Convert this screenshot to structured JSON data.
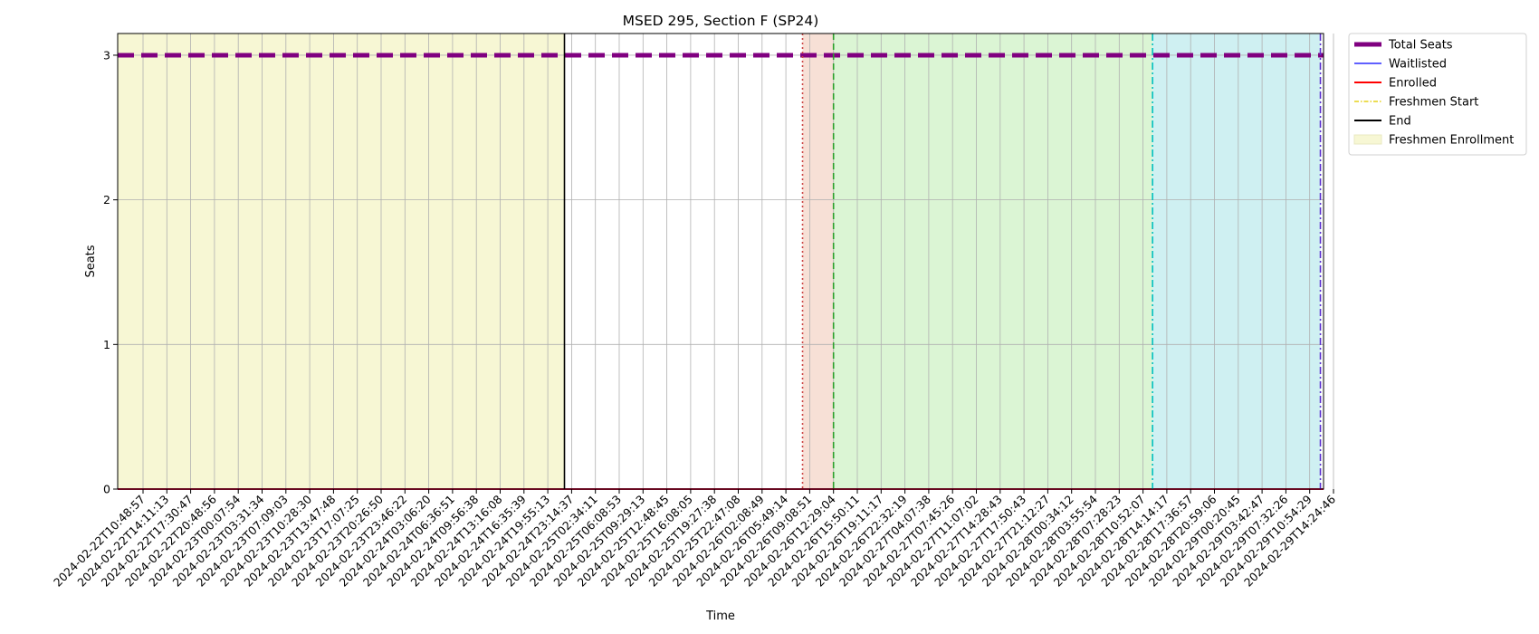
{
  "chart_data": {
    "type": "line",
    "title": "MSED 295, Section F (SP24)",
    "xlabel": "Time",
    "ylabel": "Seats",
    "ylim": [
      0,
      3.15
    ],
    "yticks": [
      0,
      1,
      2,
      3
    ],
    "grid": true,
    "legend_placement": "outside-top-right",
    "x": [
      "2024-02-22T10:48:57",
      "2024-02-22T14:11:13",
      "2024-02-22T17:30:47",
      "2024-02-22T20:48:56",
      "2024-02-23T00:07:54",
      "2024-02-23T03:31:34",
      "2024-02-23T07:09:03",
      "2024-02-23T10:28:30",
      "2024-02-23T13:47:48",
      "2024-02-23T17:07:25",
      "2024-02-23T20:26:50",
      "2024-02-23T23:46:22",
      "2024-02-24T03:06:20",
      "2024-02-24T06:36:51",
      "2024-02-24T09:56:38",
      "2024-02-24T13:16:08",
      "2024-02-24T16:35:39",
      "2024-02-24T19:55:13",
      "2024-02-24T23:14:37",
      "2024-02-25T02:34:11",
      "2024-02-25T06:08:53",
      "2024-02-25T09:29:13",
      "2024-02-25T12:48:45",
      "2024-02-25T16:08:05",
      "2024-02-25T19:27:38",
      "2024-02-25T22:47:08",
      "2024-02-26T02:08:49",
      "2024-02-26T05:49:14",
      "2024-02-26T09:08:51",
      "2024-02-26T12:29:04",
      "2024-02-26T15:50:11",
      "2024-02-26T19:11:17",
      "2024-02-26T22:32:19",
      "2024-02-27T04:07:38",
      "2024-02-27T07:45:26",
      "2024-02-27T11:07:02",
      "2024-02-27T14:28:43",
      "2024-02-27T17:50:43",
      "2024-02-27T21:12:27",
      "2024-02-28T00:34:12",
      "2024-02-28T03:55:54",
      "2024-02-28T07:28:23",
      "2024-02-28T10:52:07",
      "2024-02-28T14:14:17",
      "2024-02-28T17:36:57",
      "2024-02-28T20:59:06",
      "2024-02-29T00:20:45",
      "2024-02-29T03:42:47",
      "2024-02-29T07:32:26",
      "2024-02-29T10:54:29",
      "2024-02-29T14:24:46"
    ],
    "series": [
      {
        "name": "Total Seats",
        "color": "#800080",
        "style": "dashed",
        "value": 3
      },
      {
        "name": "Waitlisted",
        "color": "#0000ff",
        "style": "solid",
        "value": 0
      },
      {
        "name": "Enrolled",
        "color": "#ff0000",
        "style": "solid",
        "value": 0
      }
    ],
    "vertical_lines": [
      {
        "name": "End",
        "color": "#000000",
        "style": "solid",
        "at_index": 17.7
      },
      {
        "color": "#cc4444",
        "style": "dotted",
        "at_index": 27.7
      },
      {
        "color": "#2ca02c",
        "style": "dashed",
        "at_index": 29.0
      },
      {
        "color": "#00bfbf",
        "style": "dashdot",
        "at_index": 42.4
      },
      {
        "color": "#5a2fd0",
        "style": "dashdot",
        "at_index": 49.45
      }
    ],
    "shaded_regions": [
      {
        "name": "Freshmen Enrollment",
        "color": "#f7f7d4",
        "from_index": 0,
        "to_index": 17.7
      },
      {
        "color": "#f7e0d6",
        "from_index": 27.7,
        "to_index": 29.0
      },
      {
        "color": "#dbf5d4",
        "from_index": 29.0,
        "to_index": 42.4
      },
      {
        "color": "#cff0f2",
        "from_index": 42.4,
        "to_index": 49.45
      }
    ],
    "legend": [
      {
        "label": "Total Seats",
        "color": "#800080",
        "kind": "thick-line"
      },
      {
        "label": "Waitlisted",
        "color": "#0000ff",
        "kind": "line"
      },
      {
        "label": "Enrolled",
        "color": "#ff0000",
        "kind": "line-medium"
      },
      {
        "label": "Freshmen Start",
        "color": "#e6d21a",
        "kind": "dashdot"
      },
      {
        "label": "End",
        "color": "#000000",
        "kind": "line-medium"
      },
      {
        "label": "Freshmen Enrollment",
        "color": "#f7f7d4",
        "kind": "patch"
      }
    ]
  }
}
